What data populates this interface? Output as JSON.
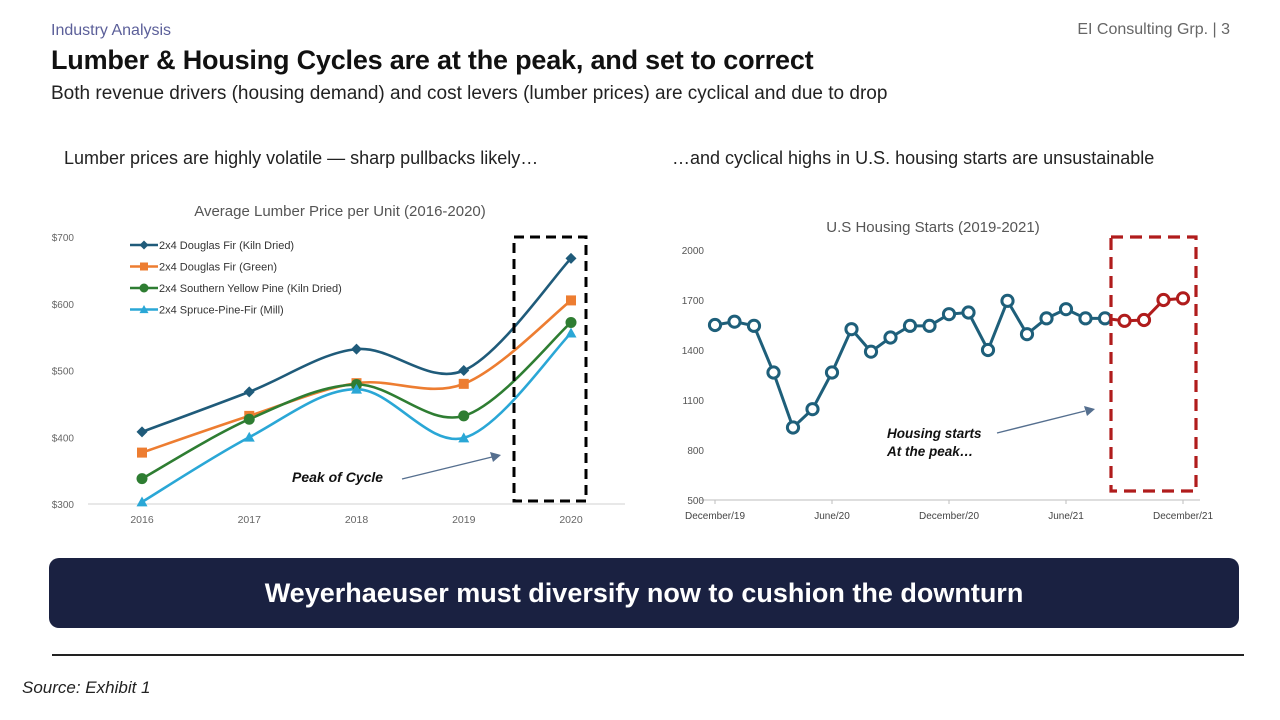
{
  "header": {
    "section_label": "Industry Analysis",
    "page_label": "EI Consulting Grp. | 3",
    "title": "Lumber & Housing Cycles are at the peak, and set to correct",
    "subtitle": "Both revenue drivers (housing demand) and cost levers (lumber prices) are cyclical and due to drop"
  },
  "panels": {
    "left_caption": "Lumber prices are highly volatile — sharp pullbacks likely…",
    "right_caption": "…and cyclical highs in U.S. housing starts are unsustainable"
  },
  "banner": {
    "text": "Weyerhaeuser must diversify now to cushion the downturn"
  },
  "footer": {
    "source": "Source: Exhibit 1"
  },
  "chart_data": [
    {
      "type": "line",
      "title": "Average Lumber Price per Unit (2016-2020)",
      "xlabel": "",
      "ylabel": "",
      "categories": [
        "2016",
        "2017",
        "2018",
        "2019",
        "2020"
      ],
      "ylim": [
        300,
        700
      ],
      "yticks": [
        300,
        400,
        500,
        600,
        700
      ],
      "ytick_labels": [
        "$300",
        "$400",
        "$500",
        "$600",
        "$700"
      ],
      "legend_position": "top-left",
      "grid": false,
      "smooth": true,
      "series": [
        {
          "name": "2x4 Douglas Fir (Kiln Dried)",
          "color": "#1f5b7a",
          "marker": "diamond",
          "values": [
            408,
            468,
            532,
            500,
            668
          ]
        },
        {
          "name": "2x4 Douglas Fir (Green)",
          "color": "#ed7d31",
          "marker": "square",
          "values": [
            377,
            432,
            481,
            480,
            605
          ]
        },
        {
          "name": "2x4 Southern Yellow Pine (Kiln Dried)",
          "color": "#2e7d32",
          "marker": "circle",
          "values": [
            338,
            427,
            479,
            432,
            572
          ]
        },
        {
          "name": "2x4 Spruce-Pine-Fir (Mill)",
          "color": "#2aa7d6",
          "marker": "triangle",
          "values": [
            303,
            400,
            472,
            399,
            556
          ]
        }
      ],
      "annotation": {
        "text": "Peak of Cycle",
        "highlight_category": "2020",
        "highlight_color": "#000000"
      }
    },
    {
      "type": "line",
      "title": "U.S Housing Starts (2019-2021)",
      "xlabel": "",
      "ylabel": "",
      "x": [
        "Dec 2019",
        "Jan 2020",
        "Feb 2020",
        "Mar 2020",
        "Apr 2020",
        "May 2020",
        "Jun 2020",
        "Jul 2020",
        "Aug 2020",
        "Sep 2020",
        "Oct 2020",
        "Nov 2020",
        "Dec 2020",
        "Jan 2021",
        "Feb 2021",
        "Mar 2021",
        "Apr 2021",
        "May 2021",
        "Jun 2021",
        "Jul 2021",
        "Aug 2021",
        "Sep 2021",
        "Oct 2021",
        "Nov 2021",
        "Dec 2021"
      ],
      "xtick_labels": [
        {
          "label": "December/19",
          "index": 0
        },
        {
          "label": "June/20",
          "index": 6
        },
        {
          "label": "December/20",
          "index": 12
        },
        {
          "label": "June/21",
          "index": 18
        },
        {
          "label": "December/21",
          "index": 24
        }
      ],
      "ylim": [
        500,
        2000
      ],
      "yticks": [
        500,
        800,
        1100,
        1400,
        1700,
        2000
      ],
      "grid": false,
      "series": [
        {
          "name": "",
          "color": "#1e5f7a",
          "highlight_color": "#b01c1c",
          "highlight_from_index": 20,
          "values": [
            1550,
            1570,
            1545,
            1265,
            935,
            1045,
            1265,
            1525,
            1390,
            1475,
            1545,
            1545,
            1615,
            1625,
            1400,
            1695,
            1495,
            1590,
            1645,
            1590,
            1590,
            1575,
            1580,
            1700,
            1710
          ]
        }
      ],
      "annotation": {
        "text_lines": [
          "Housing starts",
          "At the peak…"
        ],
        "highlight_color": "#b01c1c"
      }
    }
  ]
}
